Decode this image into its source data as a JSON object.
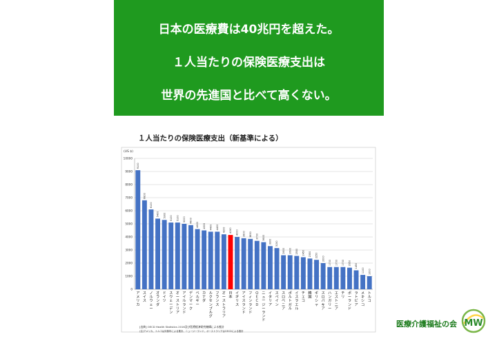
{
  "banner": {
    "line1": "日本の医療費は40兆円を超えた。",
    "line2": "１人当たりの保険医療支出は",
    "line3": "世界の先進国と比べて高くない。"
  },
  "chart_data": {
    "type": "bar",
    "title": "１人当たりの保険医療支出（新基準による）",
    "ylabel": "(US $)",
    "ylim": [
      0,
      10000
    ],
    "yticks": [
      0,
      1000,
      2000,
      3000,
      4000,
      5000,
      6000,
      7000,
      8000,
      9000,
      10000
    ],
    "grid": true,
    "bar_color": "#4472c4",
    "highlight_color": "#ff0000",
    "highlight_category": "日本",
    "categories": [
      "アメリカ",
      "スイス",
      "ノルウェー",
      "オランダ",
      "ドイツ",
      "スウェーデン",
      "オーストリア",
      "アイルランド",
      "デンマーク",
      "ベルギー",
      "カナダ",
      "ルクセンブルグ",
      "フランス",
      "オーストラリア",
      "日本",
      "イギリス",
      "アイスランド",
      "フィンランド",
      "ＯＥＣＤ",
      "ニュージーランド",
      "イタリア",
      "スペイン",
      "スロベニア",
      "ポルトガル",
      "イスラエル",
      "チェコ",
      "韓国",
      "ギリシャ",
      "スロバキア",
      "ハンガリー",
      "エストニア",
      "チリ",
      "ポーランド",
      "ラトビア",
      "メキシコ",
      "トルコ"
    ],
    "values": [
      9100,
      6800,
      6100,
      5400,
      5300,
      5100,
      5100,
      5000,
      4900,
      4600,
      4500,
      4400,
      4400,
      4200,
      4150,
      4000,
      3900,
      3850,
      3700,
      3600,
      3300,
      3150,
      2600,
      2600,
      2550,
      2450,
      2350,
      2250,
      2000,
      1700,
      1700,
      1700,
      1650,
      1450,
      1100,
      1000
    ],
    "source_line1": "[出典] OECD Health Statistics 2016及び医療経済研究機構による推計",
    "source_line2": "(注)アメリカ、トルコは対象年による推計、ニュージーランド、オーストラリアはOECDによる推計"
  },
  "logo": {
    "text": "医療介護福祉の会",
    "letters": "MW"
  }
}
